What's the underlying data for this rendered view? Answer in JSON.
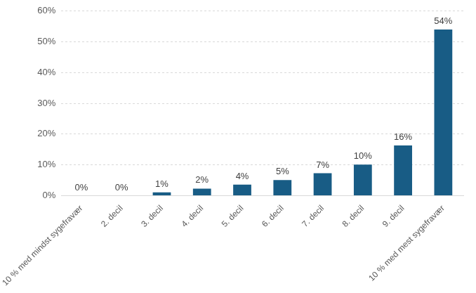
{
  "chart_data": {
    "type": "bar",
    "categories": [
      "10 % med mindst sygefravær",
      "2. decil",
      "3. decil",
      "4. decil",
      "5. decil",
      "6. decil",
      "7. decil",
      "8. decil",
      "9. decil",
      "10 % med mest sygefravær"
    ],
    "values": [
      0,
      0,
      1.1,
      2.3,
      3.6,
      5.1,
      7.3,
      10.1,
      16.3,
      54
    ],
    "value_labels": [
      "0%",
      "0%",
      "1%",
      "2%",
      "4%",
      "5%",
      "7%",
      "10%",
      "16%",
      "54%"
    ],
    "color": "#185c85",
    "ylim": [
      0,
      60
    ],
    "yticks": [
      {
        "value": 0,
        "label": "0%"
      },
      {
        "value": 10,
        "label": "10%"
      },
      {
        "value": 20,
        "label": "20%"
      },
      {
        "value": 30,
        "label": "30%"
      },
      {
        "value": 40,
        "label": "40%"
      },
      {
        "value": 50,
        "label": "50%"
      },
      {
        "value": 60,
        "label": "60%"
      }
    ],
    "grid": true,
    "data_labels": true
  }
}
